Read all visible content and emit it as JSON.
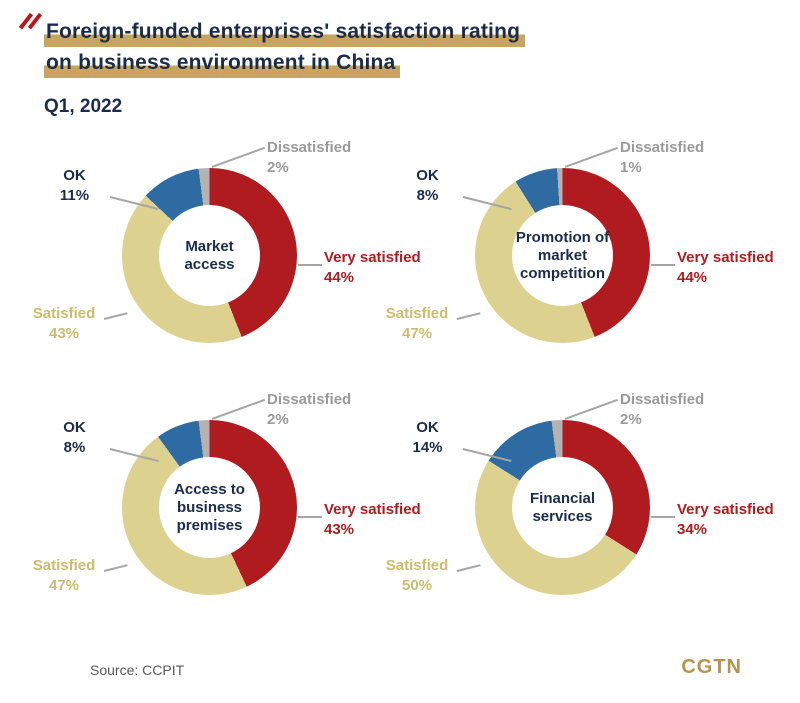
{
  "header": {
    "title_line1": "Foreign-funded enterprises' satisfaction rating",
    "title_line2": "on business environment in China",
    "subtitle": "Q1, 2022"
  },
  "footer": {
    "source": "Source: CCPIT",
    "logo": "CGTN"
  },
  "colors": {
    "very_satisfied": "#b01b20",
    "satisfied": "#ddd18f",
    "ok": "#2f6ba3",
    "dissatisfied": "#b3b3b3",
    "navy": "#1b2b4c",
    "highlight": "#c8a55e",
    "logo_gold": "#b6934e"
  },
  "label_colors": {
    "very_satisfied": "#b01b20",
    "satisfied": "#ccbc6c",
    "ok": "#1b2b4c",
    "dissatisfied": "#9a9a9a"
  },
  "chart_data": {
    "type": "pie",
    "variant": "donut",
    "start_angle_deg": 0,
    "direction": "clockwise",
    "grid": "2x2",
    "categories": [
      "Very satisfied",
      "Satisfied",
      "OK",
      "Dissatisfied"
    ],
    "charts": [
      {
        "title": "Market access",
        "segments": [
          {
            "key": "very_satisfied",
            "label": "Very satisfied",
            "pct": 44,
            "pct_text": "44%"
          },
          {
            "key": "satisfied",
            "label": "Satisfied",
            "pct": 43,
            "pct_text": "43%"
          },
          {
            "key": "ok",
            "label": "OK",
            "pct": 11,
            "pct_text": "11%"
          },
          {
            "key": "dissatisfied",
            "label": "Dissatisfied",
            "pct": 2,
            "pct_text": "2%"
          }
        ]
      },
      {
        "title": "Promotion of market competition",
        "segments": [
          {
            "key": "very_satisfied",
            "label": "Very satisfied",
            "pct": 44,
            "pct_text": "44%"
          },
          {
            "key": "satisfied",
            "label": "Satisfied",
            "pct": 47,
            "pct_text": "47%"
          },
          {
            "key": "ok",
            "label": "OK",
            "pct": 8,
            "pct_text": "8%"
          },
          {
            "key": "dissatisfied",
            "label": "Dissatisfied",
            "pct": 1,
            "pct_text": "1%"
          }
        ]
      },
      {
        "title": "Access to business premises",
        "segments": [
          {
            "key": "very_satisfied",
            "label": "Very satisfied",
            "pct": 43,
            "pct_text": "43%"
          },
          {
            "key": "satisfied",
            "label": "Satisfied",
            "pct": 47,
            "pct_text": "47%"
          },
          {
            "key": "ok",
            "label": "OK",
            "pct": 8,
            "pct_text": "8%"
          },
          {
            "key": "dissatisfied",
            "label": "Dissatisfied",
            "pct": 2,
            "pct_text": "2%"
          }
        ]
      },
      {
        "title": "Financial services",
        "segments": [
          {
            "key": "very_satisfied",
            "label": "Very satisfied",
            "pct": 34,
            "pct_text": "34%"
          },
          {
            "key": "satisfied",
            "label": "Satisfied",
            "pct": 50,
            "pct_text": "50%"
          },
          {
            "key": "ok",
            "label": "OK",
            "pct": 14,
            "pct_text": "14%"
          },
          {
            "key": "dissatisfied",
            "label": "Dissatisfied",
            "pct": 2,
            "pct_text": "2%"
          }
        ]
      }
    ]
  }
}
